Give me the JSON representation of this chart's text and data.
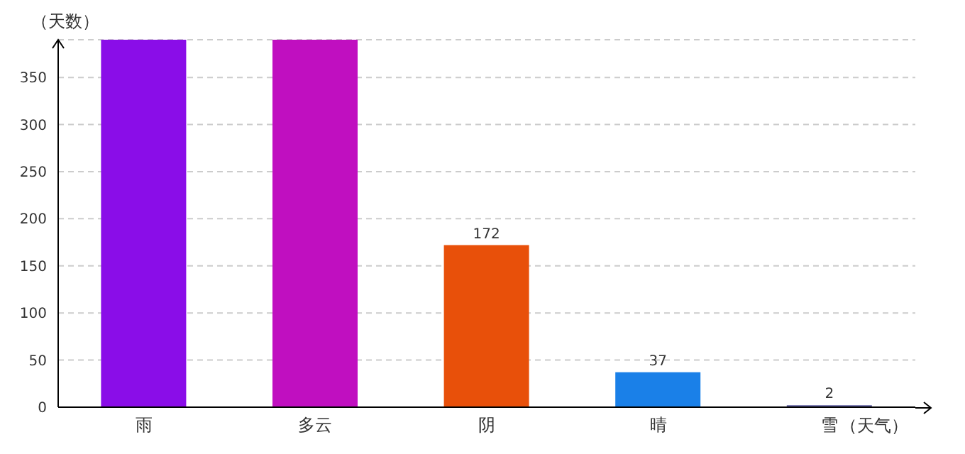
{
  "chart_data": {
    "type": "bar",
    "xlabel": "（天气）",
    "ylabel": "（天数）",
    "categories": [
      "雨",
      "多云",
      "阴",
      "晴",
      "雪"
    ],
    "values": [
      390,
      390,
      172,
      37,
      2
    ],
    "colors": [
      "#8a0de8",
      "#c00fc0",
      "#e8500a",
      "#1a80e8",
      "#5c5c9c"
    ],
    "value_labels": [
      null,
      null,
      "172",
      "37",
      "2"
    ],
    "ylim": [
      0,
      390
    ],
    "yticks": [
      0,
      50,
      100,
      150,
      200,
      250,
      300,
      350
    ],
    "grid": "y"
  }
}
